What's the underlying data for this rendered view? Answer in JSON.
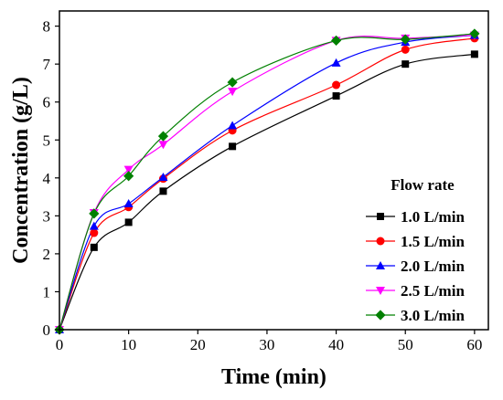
{
  "chart_data": {
    "type": "scatter",
    "xlabel": "Time (min)",
    "ylabel": "Concentration (g/L)",
    "xlim": [
      0,
      62
    ],
    "ylim": [
      0,
      8.4
    ],
    "xticks": [
      0,
      10,
      20,
      30,
      40,
      50,
      60
    ],
    "yticks": [
      0,
      1,
      2,
      3,
      4,
      5,
      6,
      7,
      8
    ],
    "grid": false,
    "legend": {
      "title": "Flow rate",
      "position": "bottom-right"
    },
    "series": [
      {
        "name": "1.0 L/min",
        "color": "#000000",
        "marker": "square",
        "x": [
          0,
          5,
          10,
          15,
          25,
          40,
          50,
          60
        ],
        "y": [
          0,
          2.17,
          2.83,
          3.65,
          4.83,
          6.16,
          7.0,
          7.26
        ]
      },
      {
        "name": "1.5 L/min",
        "color": "#ff0000",
        "marker": "circle",
        "x": [
          0,
          5,
          10,
          15,
          25,
          40,
          50,
          60
        ],
        "y": [
          0,
          2.55,
          3.23,
          3.98,
          5.25,
          6.45,
          7.38,
          7.68
        ]
      },
      {
        "name": "2.0 L/min",
        "color": "#0000ff",
        "marker": "triangle-up",
        "x": [
          0,
          5,
          10,
          15,
          25,
          40,
          50,
          60
        ],
        "y": [
          0,
          2.73,
          3.32,
          4.02,
          5.38,
          7.03,
          7.58,
          7.76
        ]
      },
      {
        "name": "2.5 L/min",
        "color": "#ff00ff",
        "marker": "triangle-down",
        "x": [
          0,
          5,
          10,
          15,
          25,
          40,
          50,
          60
        ],
        "y": [
          0,
          3.08,
          4.22,
          4.88,
          6.28,
          7.62,
          7.68,
          7.76
        ]
      },
      {
        "name": "3.0 L/min",
        "color": "#008000",
        "marker": "diamond",
        "x": [
          0,
          5,
          10,
          15,
          25,
          40,
          50,
          60
        ],
        "y": [
          0,
          3.06,
          4.05,
          5.1,
          6.52,
          7.62,
          7.65,
          7.8
        ]
      }
    ]
  }
}
